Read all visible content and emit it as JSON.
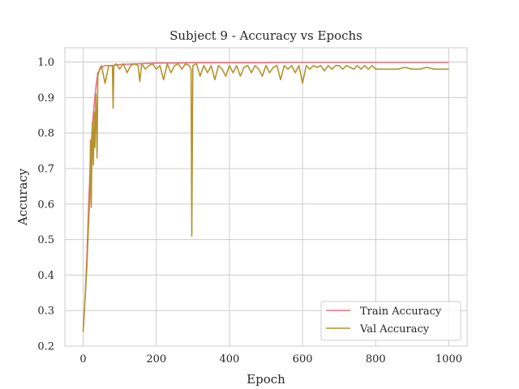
{
  "chart_data": {
    "type": "line",
    "title": "Subject 9 - Accuracy vs Epochs",
    "xlabel": "Epoch",
    "ylabel": "Accuracy",
    "xlim": [
      -50,
      1050
    ],
    "ylim": [
      0.2,
      1.04
    ],
    "xticks": [
      0,
      200,
      400,
      600,
      800,
      1000
    ],
    "yticks": [
      0.2,
      0.3,
      0.4,
      0.5,
      0.6,
      0.7,
      0.8,
      0.9,
      1.0
    ],
    "xtick_labels": [
      "0",
      "200",
      "400",
      "600",
      "800",
      "1000"
    ],
    "ytick_labels": [
      "0.2",
      "0.3",
      "0.4",
      "0.5",
      "0.6",
      "0.7",
      "0.8",
      "0.9",
      "1.0"
    ],
    "grid": true,
    "legend_position": "bottom-right",
    "series": [
      {
        "name": "Train Accuracy",
        "color": "#f07080",
        "x": [
          0,
          5,
          10,
          15,
          20,
          25,
          30,
          35,
          40,
          50,
          60,
          80,
          100,
          150,
          200,
          250,
          300,
          350,
          400,
          450,
          500,
          550,
          600,
          650,
          700,
          750,
          800,
          850,
          900,
          950,
          1000
        ],
        "y": [
          0.24,
          0.33,
          0.45,
          0.6,
          0.72,
          0.82,
          0.88,
          0.93,
          0.97,
          0.985,
          0.99,
          0.99,
          0.993,
          0.995,
          0.997,
          0.997,
          0.998,
          0.998,
          0.998,
          0.998,
          0.998,
          0.999,
          0.999,
          0.999,
          0.999,
          0.999,
          0.999,
          0.999,
          0.999,
          0.999,
          0.999
        ]
      },
      {
        "name": "Val Accuracy",
        "color": "#b5922e",
        "x": [
          0,
          5,
          10,
          15,
          18,
          20,
          22,
          25,
          28,
          30,
          32,
          35,
          38,
          40,
          45,
          50,
          60,
          70,
          80,
          82,
          84,
          90,
          100,
          110,
          120,
          130,
          140,
          150,
          155,
          160,
          170,
          180,
          190,
          200,
          210,
          220,
          230,
          240,
          250,
          260,
          270,
          280,
          290,
          295,
          297,
          300,
          310,
          320,
          330,
          340,
          350,
          360,
          370,
          380,
          390,
          400,
          410,
          420,
          430,
          440,
          450,
          460,
          470,
          480,
          490,
          500,
          510,
          520,
          530,
          540,
          550,
          560,
          570,
          580,
          590,
          600,
          610,
          620,
          630,
          640,
          650,
          660,
          670,
          680,
          690,
          700,
          710,
          720,
          730,
          740,
          750,
          760,
          770,
          780,
          790,
          800,
          820,
          840,
          860,
          880,
          900,
          920,
          940,
          960,
          980,
          1000
        ],
        "y": [
          0.24,
          0.33,
          0.42,
          0.55,
          0.62,
          0.78,
          0.59,
          0.83,
          0.71,
          0.86,
          0.76,
          0.91,
          0.73,
          0.96,
          0.98,
          0.99,
          0.94,
          0.99,
          0.99,
          0.87,
          0.99,
          0.995,
          0.98,
          0.995,
          0.97,
          0.99,
          0.995,
          0.99,
          0.945,
          0.995,
          0.98,
          0.99,
          0.995,
          0.98,
          0.99,
          0.95,
          0.995,
          0.97,
          0.99,
          0.995,
          0.98,
          0.995,
          0.99,
          0.98,
          0.51,
          0.99,
          0.995,
          0.96,
          0.99,
          0.97,
          0.99,
          0.95,
          0.99,
          0.98,
          0.96,
          0.99,
          0.97,
          0.99,
          0.96,
          0.985,
          0.99,
          0.97,
          0.99,
          0.98,
          0.96,
          0.99,
          0.97,
          0.985,
          0.99,
          0.95,
          0.99,
          0.98,
          0.99,
          0.97,
          0.99,
          0.94,
          0.99,
          0.98,
          0.99,
          0.985,
          0.99,
          0.975,
          0.99,
          0.98,
          0.99,
          0.99,
          0.98,
          0.99,
          0.985,
          0.98,
          0.99,
          0.98,
          0.99,
          0.98,
          0.99,
          0.98,
          0.98,
          0.98,
          0.98,
          0.985,
          0.98,
          0.98,
          0.985,
          0.98,
          0.98,
          0.98
        ]
      }
    ]
  }
}
